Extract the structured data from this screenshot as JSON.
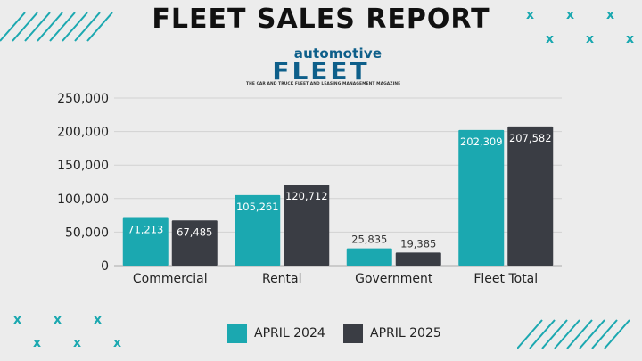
{
  "title": "FLEET SALES REPORT",
  "logo": {
    "top": "automotive",
    "main": "FLEET",
    "tagline": "THE CAR AND TRUCK FLEET AND LEASING MANAGEMENT MAGAZINE"
  },
  "colors": {
    "background": "#ececec",
    "april_2024": "#1ba8b0",
    "april_2025": "#3a3d44",
    "accent": "#1ba8b0"
  },
  "decor": {
    "x_mark_icon": "x",
    "stripe_icon": "diagonal-stripes"
  },
  "chart_data": {
    "type": "bar",
    "categories": [
      "Commercial",
      "Rental",
      "Government",
      "Fleet Total"
    ],
    "series": [
      {
        "name": "APRIL 2024",
        "values": [
          71213,
          105261,
          25835,
          202309
        ],
        "labels": [
          "71,213",
          "105,261",
          "25,835",
          "202,309"
        ]
      },
      {
        "name": "APRIL 2025",
        "values": [
          67485,
          120712,
          19385,
          207582
        ],
        "labels": [
          "67,485",
          "120,712",
          "19,385",
          "207,582"
        ]
      }
    ],
    "ylim": [
      0,
      250000
    ],
    "yticks": [
      0,
      50000,
      100000,
      150000,
      200000,
      250000
    ],
    "ytick_labels": [
      "0",
      "50,000",
      "100,000",
      "150,000",
      "200,000",
      "250,000"
    ],
    "grid": true,
    "legend_position": "bottom"
  }
}
